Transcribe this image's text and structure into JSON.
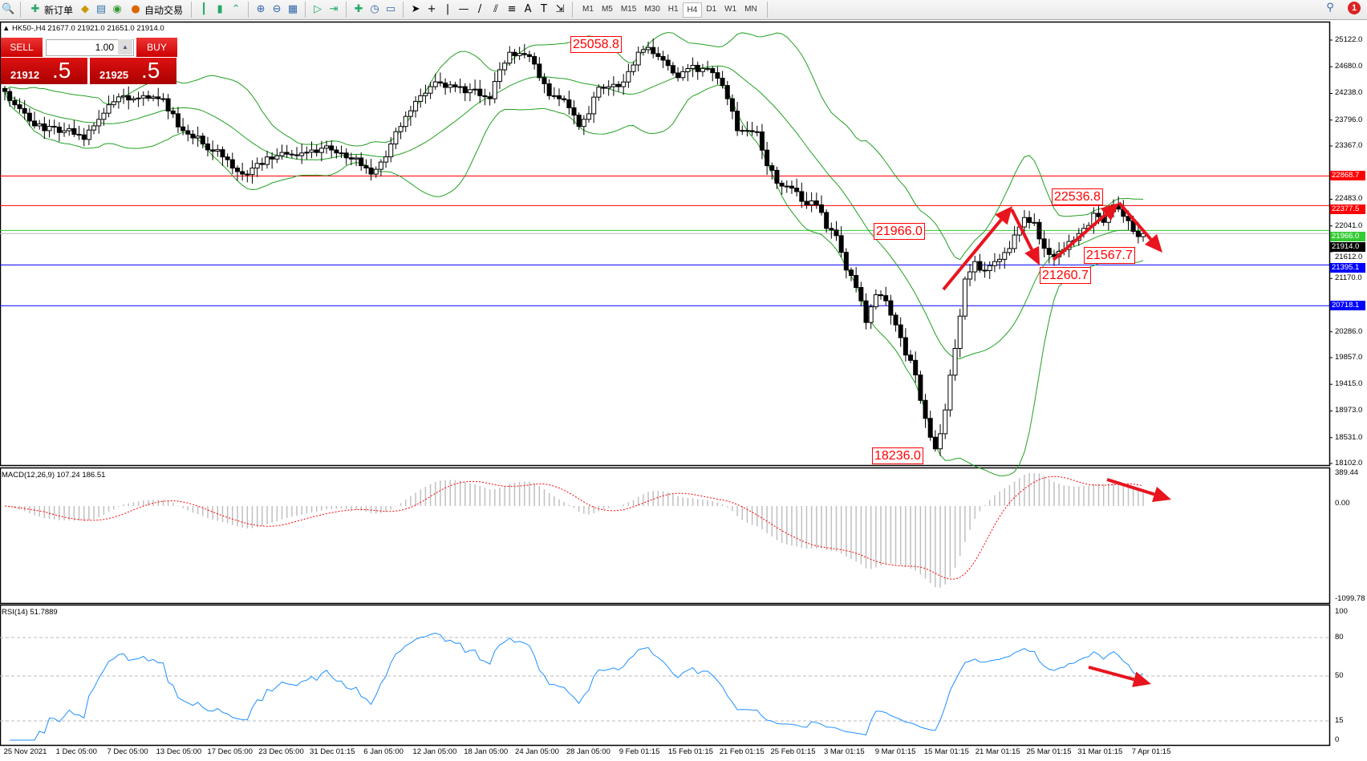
{
  "toolbar": {
    "new_order": "新订单",
    "auto_trading": "自动交易",
    "timeframes": [
      "M1",
      "M5",
      "M15",
      "M30",
      "H1",
      "H4",
      "D1",
      "W1",
      "MN"
    ],
    "active_timeframe": "H4",
    "notification_count": "1"
  },
  "symbol_info": "HK50-,H4  21677.0 21921.0 21651.0 21914.0",
  "trade_panel": {
    "sell": "SELL",
    "buy": "BUY",
    "lots": "1.00",
    "bid_main": "21912",
    "bid_tail": ".5",
    "ask_main": "21925",
    "ask_tail": ".5"
  },
  "price_axis": [
    "25122.0",
    "24680.0",
    "24238.0",
    "23796.0",
    "23367.0",
    "22483.0",
    "22041.0",
    "21612.0",
    "21170.0",
    "20286.0",
    "19857.0",
    "19415.0",
    "18973.0",
    "18531.0",
    "18102.0"
  ],
  "price_lines": [
    {
      "value": 22868.7,
      "label": "22868.7",
      "color": "#ff0000"
    },
    {
      "value": 22377.5,
      "label": "22377.5",
      "color": "#ff0000"
    },
    {
      "value": 21966.0,
      "label": "21966.0",
      "color": "#33cc33"
    },
    {
      "value": 21914.0,
      "label": "21914.0",
      "color": "#000000"
    },
    {
      "value": 21395.1,
      "label": "21395.1",
      "color": "#0000ff"
    },
    {
      "value": 20718.1,
      "label": "20718.1",
      "color": "#0000ff"
    }
  ],
  "annotations": [
    "25058.8",
    "21966.0",
    "22536.8",
    "21567.7",
    "21260.7",
    "18236.0"
  ],
  "closes": [
    24270,
    24050,
    23910,
    23700,
    23620,
    23680,
    23620,
    23560,
    23475,
    23700,
    23910,
    24100,
    24200,
    24150,
    24200,
    24180,
    24150,
    23900,
    23620,
    23500,
    23400,
    23280,
    23185,
    23000,
    22900,
    23000,
    23060,
    23150,
    23260,
    23220,
    23250,
    23300,
    23330,
    23300,
    23250,
    23150,
    23040,
    22900,
    23100,
    23400,
    23690,
    23950,
    24200,
    24350,
    24410,
    24380,
    24350,
    24300,
    24200,
    24150,
    24630,
    24920,
    24900,
    24850,
    24500,
    24200,
    24150,
    24000,
    23690,
    23900,
    24340,
    24350,
    24350,
    24600,
    24920,
    25000,
    24850,
    24700,
    24500,
    24650,
    24600,
    24650,
    24490,
    24150,
    23620,
    23620,
    23600,
    23040,
    22750,
    22700,
    22610,
    22390,
    22390,
    22000,
    21880,
    21310,
    21020,
    20440,
    20900,
    20800,
    20400,
    19900,
    19570,
    18850,
    18345,
    18990,
    20010,
    21160,
    21450,
    21300,
    21450,
    21600,
    21890,
    22180,
    22100,
    21670,
    21530,
    21650,
    21800,
    22000,
    22250,
    22100,
    22390,
    22200,
    21950,
    21914
  ],
  "macd": {
    "title": "MACD(12,26,9) 107.24 186.51",
    "max": "389.44",
    "zero": "0.00",
    "min": "-1099.78",
    "colors": {
      "histogram": "#c0c0c0",
      "signal": "#ff0000"
    }
  },
  "rsi": {
    "title": "RSI(14) 51.7889",
    "levels": [
      "100",
      "80",
      "50",
      "15",
      "0"
    ],
    "color": "#1e90ff"
  },
  "time_axis": [
    "25 Nov 2021",
    "1 Dec 05:00",
    "7 Dec 05:00",
    "13 Dec 05:00",
    "17 Dec 05:00",
    "23 Dec 05:00",
    "31 Dec 01:15",
    "6 Jan 05:00",
    "12 Jan 05:00",
    "18 Jan 05:00",
    "24 Jan 05:00",
    "28 Jan 05:00",
    "9 Feb 01:15",
    "15 Feb 01:15",
    "21 Feb 01:15",
    "25 Feb 01:15",
    "3 Mar 01:15",
    "9 Mar 01:15",
    "15 Mar 01:15",
    "21 Mar 01:15",
    "25 Mar 01:15",
    "31 Mar 01:15",
    "7 Apr 01:15"
  ],
  "colors": {
    "bands": "#22a022",
    "arrows": "#e8141e"
  }
}
